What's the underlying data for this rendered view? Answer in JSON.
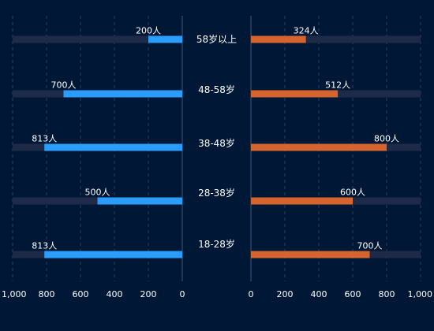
{
  "chart_data": {
    "type": "bar",
    "orientation": "horizontal",
    "layout": "butterfly",
    "categories": [
      "58岁以上",
      "48-58岁",
      "38-48岁",
      "28-38岁",
      "18-28岁"
    ],
    "unit": "人",
    "series": [
      {
        "side": "left",
        "values": [
          200,
          700,
          813,
          500,
          813
        ],
        "labels": [
          "200人",
          "700人",
          "813人",
          "500人",
          "813人"
        ],
        "color": "#2a9dff"
      },
      {
        "side": "right",
        "values": [
          324,
          512,
          800,
          600,
          700
        ],
        "labels": [
          "324人",
          "512人",
          "800人",
          "600人",
          "700人"
        ],
        "color": "#d6642f"
      }
    ],
    "track_color": "#1d2b48",
    "xlim": [
      0,
      1000
    ],
    "left_ticks": [
      "1,000",
      "800",
      "600",
      "400",
      "200",
      "0"
    ],
    "right_ticks": [
      "0",
      "200",
      "400",
      "600",
      "800",
      "1,000"
    ],
    "tick_values": [
      0,
      200,
      400,
      600,
      800,
      1000
    ],
    "grid": true,
    "legend": "none",
    "colors": {
      "background": "#001835",
      "grid": "#25406a",
      "axis": "#3b5680",
      "text": "#ffffff"
    }
  }
}
